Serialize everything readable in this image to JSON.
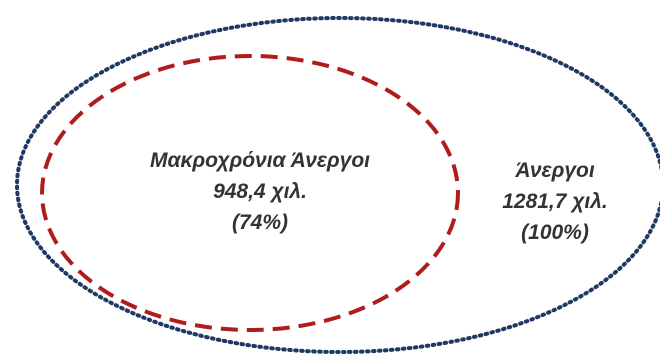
{
  "diagram": {
    "type": "nested-venn",
    "outer_set": {
      "name": "Άνεργοι",
      "value_text": "1281,7 χιλ.",
      "percent_text": "(100%)",
      "value": 1281.7,
      "percent": 100,
      "border_style": "dotted",
      "border_color": "#1f3864"
    },
    "inner_set": {
      "name": "Μακροχρόνια Άνεργοι",
      "value_text": "948,4 χιλ.",
      "percent_text": "(74%)",
      "value": 948.4,
      "percent": 74,
      "border_style": "dashed",
      "border_color": "#b01c1c"
    },
    "label_color": "#333333"
  }
}
